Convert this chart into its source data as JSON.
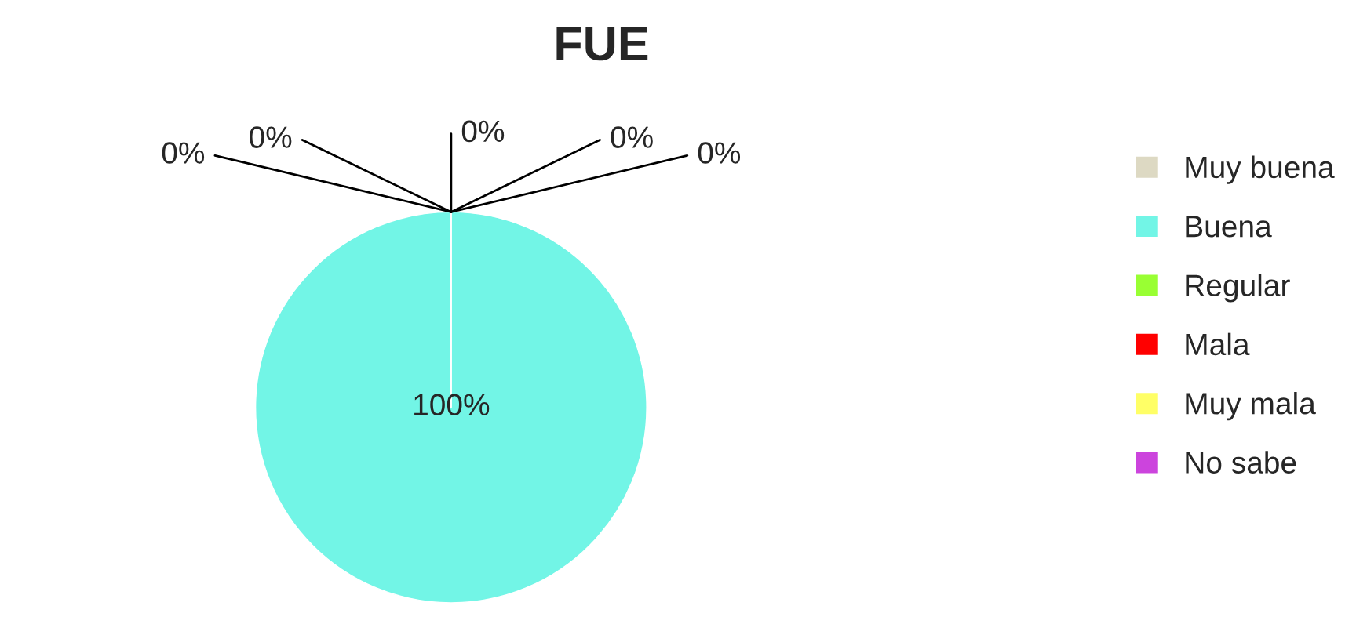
{
  "chart_data": {
    "type": "pie",
    "title": "FUE",
    "categories": [
      "Muy buena",
      "Buena",
      "Regular",
      "Mala",
      "Muy mala",
      "No sabe"
    ],
    "values": [
      0,
      100,
      0,
      0,
      0,
      0
    ],
    "colors": [
      "#ddd9c3",
      "#72f5e6",
      "#99ff33",
      "#ff0000",
      "#ffff66",
      "#cc44dd"
    ],
    "value_labels": [
      "0%",
      "100%",
      "0%",
      "0%",
      "0%",
      "0%"
    ],
    "legend": "right"
  }
}
